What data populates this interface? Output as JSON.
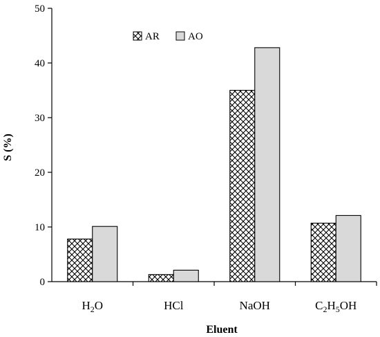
{
  "chart_data": {
    "type": "bar",
    "categories": [
      "H2O",
      "HCl",
      "NaOH",
      "C2H5OH"
    ],
    "categories_display": [
      [
        {
          "t": "H"
        },
        {
          "t": "2",
          "sub": true
        },
        {
          "t": "O"
        }
      ],
      [
        {
          "t": "HCl"
        }
      ],
      [
        {
          "t": "NaOH"
        }
      ],
      [
        {
          "t": "C"
        },
        {
          "t": "2",
          "sub": true
        },
        {
          "t": "H"
        },
        {
          "t": "5",
          "sub": true
        },
        {
          "t": "OH"
        }
      ]
    ],
    "series": [
      {
        "name": "AR",
        "values": [
          7.8,
          1.3,
          35.0,
          10.7
        ],
        "pattern": "crosshatch"
      },
      {
        "name": "AO",
        "values": [
          10.1,
          2.1,
          42.8,
          12.1
        ],
        "color": "#d9d9d9"
      }
    ],
    "xlabel": "Eluent",
    "ylabel": "S (%)",
    "ylim": [
      0,
      50
    ],
    "yticks": [
      0,
      10,
      20,
      30,
      40,
      50
    ],
    "grid": false,
    "legend": "top-left"
  }
}
